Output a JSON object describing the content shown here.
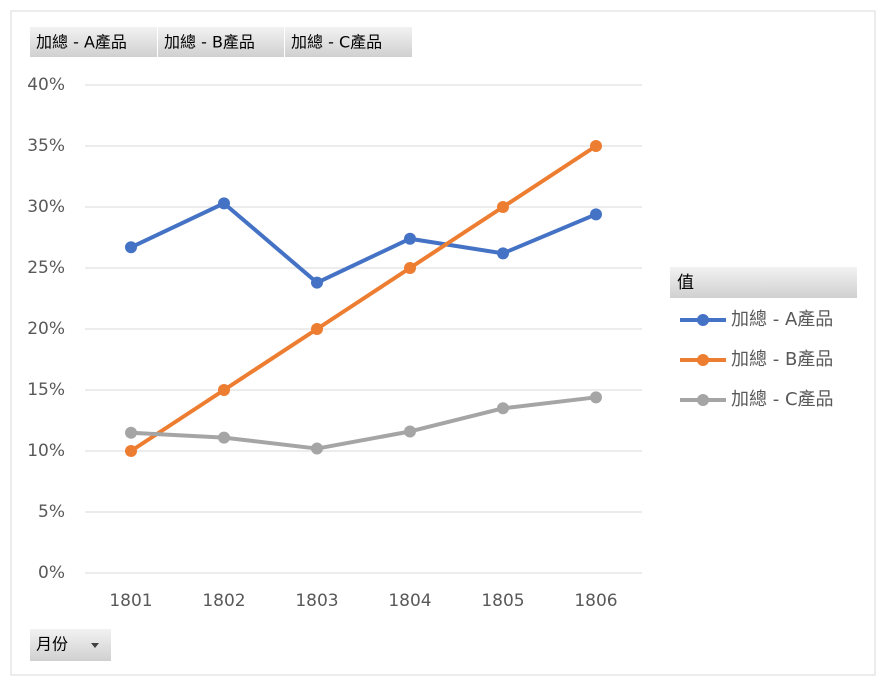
{
  "chart_data": {
    "type": "line",
    "categories": [
      "1801",
      "1802",
      "1803",
      "1804",
      "1805",
      "1806"
    ],
    "series": [
      {
        "name": "加總 - A產品",
        "color": "#4472c4",
        "values": [
          26.7,
          30.3,
          23.8,
          27.4,
          26.2,
          29.4
        ]
      },
      {
        "name": "加總 - B產品",
        "color": "#ed7d31",
        "values": [
          10,
          15,
          20,
          25,
          30,
          35
        ]
      },
      {
        "name": "加總 - C產品",
        "color": "#a5a5a5",
        "values": [
          11.5,
          11.1,
          10.2,
          11.6,
          13.5,
          14.4
        ]
      }
    ],
    "ylim": [
      0,
      40
    ],
    "yticks": [
      {
        "value": 0,
        "label": "0%"
      },
      {
        "value": 5,
        "label": "5%"
      },
      {
        "value": 10,
        "label": "10%"
      },
      {
        "value": 15,
        "label": "15%"
      },
      {
        "value": 20,
        "label": "20%"
      },
      {
        "value": 25,
        "label": "25%"
      },
      {
        "value": 30,
        "label": "30%"
      },
      {
        "value": 35,
        "label": "35%"
      },
      {
        "value": 40,
        "label": "40%"
      }
    ],
    "grid": true,
    "legend_title": "值",
    "legend_position": "right",
    "x_field": "月份"
  }
}
